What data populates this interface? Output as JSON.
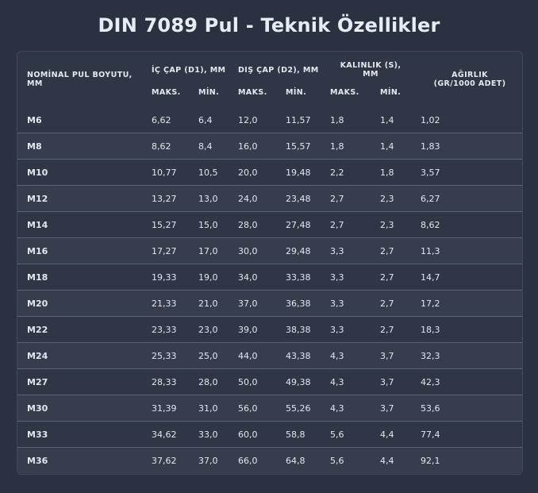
{
  "title": "DIN 7089 Pul - Teknik Özellikler",
  "headers": {
    "size": "NOMİNAL PUL BOYUTU, MM",
    "inner": "İÇ ÇAP (D1), MM",
    "outer": "DIŞ ÇAP (D2), MM",
    "thickness": "KALINLIK (S), MM",
    "weight": "AĞIRLIK (GR/1000 ADET)",
    "max": "MAKS.",
    "min": "MİN."
  },
  "rows": [
    [
      "M6",
      "6,62",
      "6,4",
      "12,0",
      "11,57",
      "1,8",
      "1,4",
      "1,02"
    ],
    [
      "M8",
      "8,62",
      "8,4",
      "16,0",
      "15,57",
      "1,8",
      "1,4",
      "1,83"
    ],
    [
      "M10",
      "10,77",
      "10,5",
      "20,0",
      "19,48",
      "2,2",
      "1,8",
      "3,57"
    ],
    [
      "M12",
      "13,27",
      "13,0",
      "24,0",
      "23,48",
      "2,7",
      "2,3",
      "6,27"
    ],
    [
      "M14",
      "15,27",
      "15,0",
      "28,0",
      "27,48",
      "2,7",
      "2,3",
      "8,62"
    ],
    [
      "M16",
      "17,27",
      "17,0",
      "30,0",
      "29,48",
      "3,3",
      "2,7",
      "11,3"
    ],
    [
      "M18",
      "19,33",
      "19,0",
      "34,0",
      "33,38",
      "3,3",
      "2,7",
      "14,7"
    ],
    [
      "M20",
      "21,33",
      "21,0",
      "37,0",
      "36,38",
      "3,3",
      "2,7",
      "17,2"
    ],
    [
      "M22",
      "23,33",
      "23,0",
      "39,0",
      "38,38",
      "3,3",
      "2,7",
      "18,3"
    ],
    [
      "M24",
      "25,33",
      "25,0",
      "44,0",
      "43,38",
      "4,3",
      "3,7",
      "32,3"
    ],
    [
      "M27",
      "28,33",
      "28,0",
      "50,0",
      "49,38",
      "4,3",
      "3,7",
      "42,3"
    ],
    [
      "M30",
      "31,39",
      "31,0",
      "56,0",
      "55,26",
      "4,3",
      "3,7",
      "53,6"
    ],
    [
      "M33",
      "34,62",
      "33,0",
      "60,0",
      "58,8",
      "5,6",
      "4,4",
      "77,4"
    ],
    [
      "M36",
      "37,62",
      "37,0",
      "66,0",
      "64,8",
      "5,6",
      "4,4",
      "92,1"
    ]
  ]
}
